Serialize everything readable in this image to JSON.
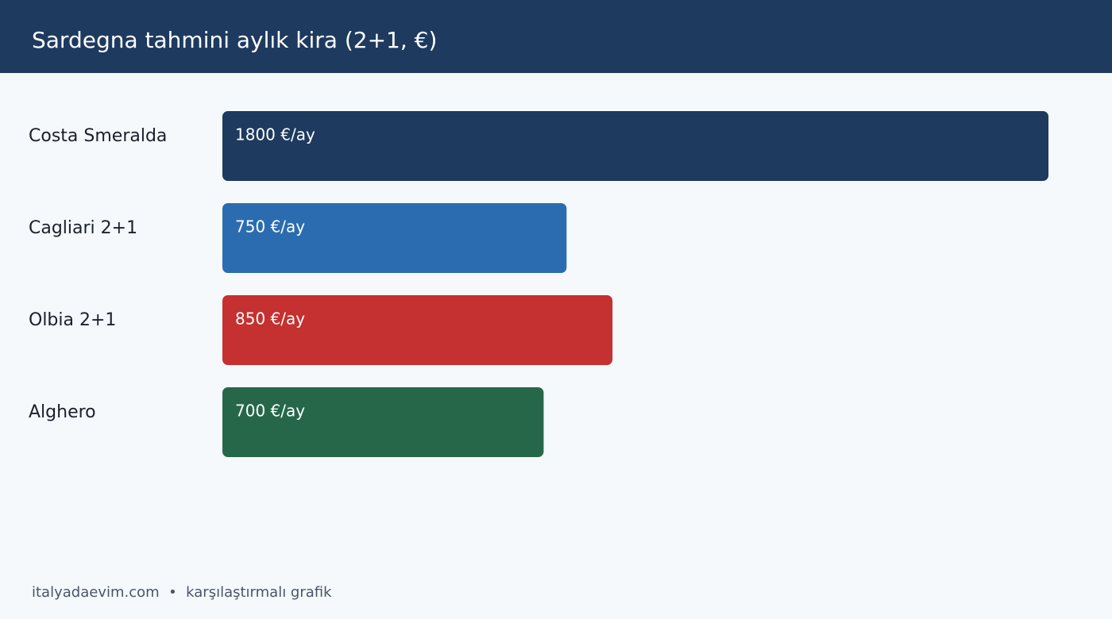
{
  "chart_data": {
    "type": "bar",
    "orientation": "horizontal",
    "title": "Sardegna tahmini aylık kira (2+1, €)",
    "categories": [
      "Costa Smeralda",
      "Cagliari 2+1",
      "Olbia 2+1",
      "Alghero"
    ],
    "values": [
      1800,
      750,
      850,
      700
    ],
    "value_labels": [
      "1800 €/ay",
      "750 €/ay",
      "850 €/ay",
      "700 €/ay"
    ],
    "colors": [
      "#1e3a5f",
      "#2b6cb0",
      "#c53030",
      "#276749"
    ],
    "footer": "italyadaevim.com  •  karşılaştırmalı grafik"
  }
}
